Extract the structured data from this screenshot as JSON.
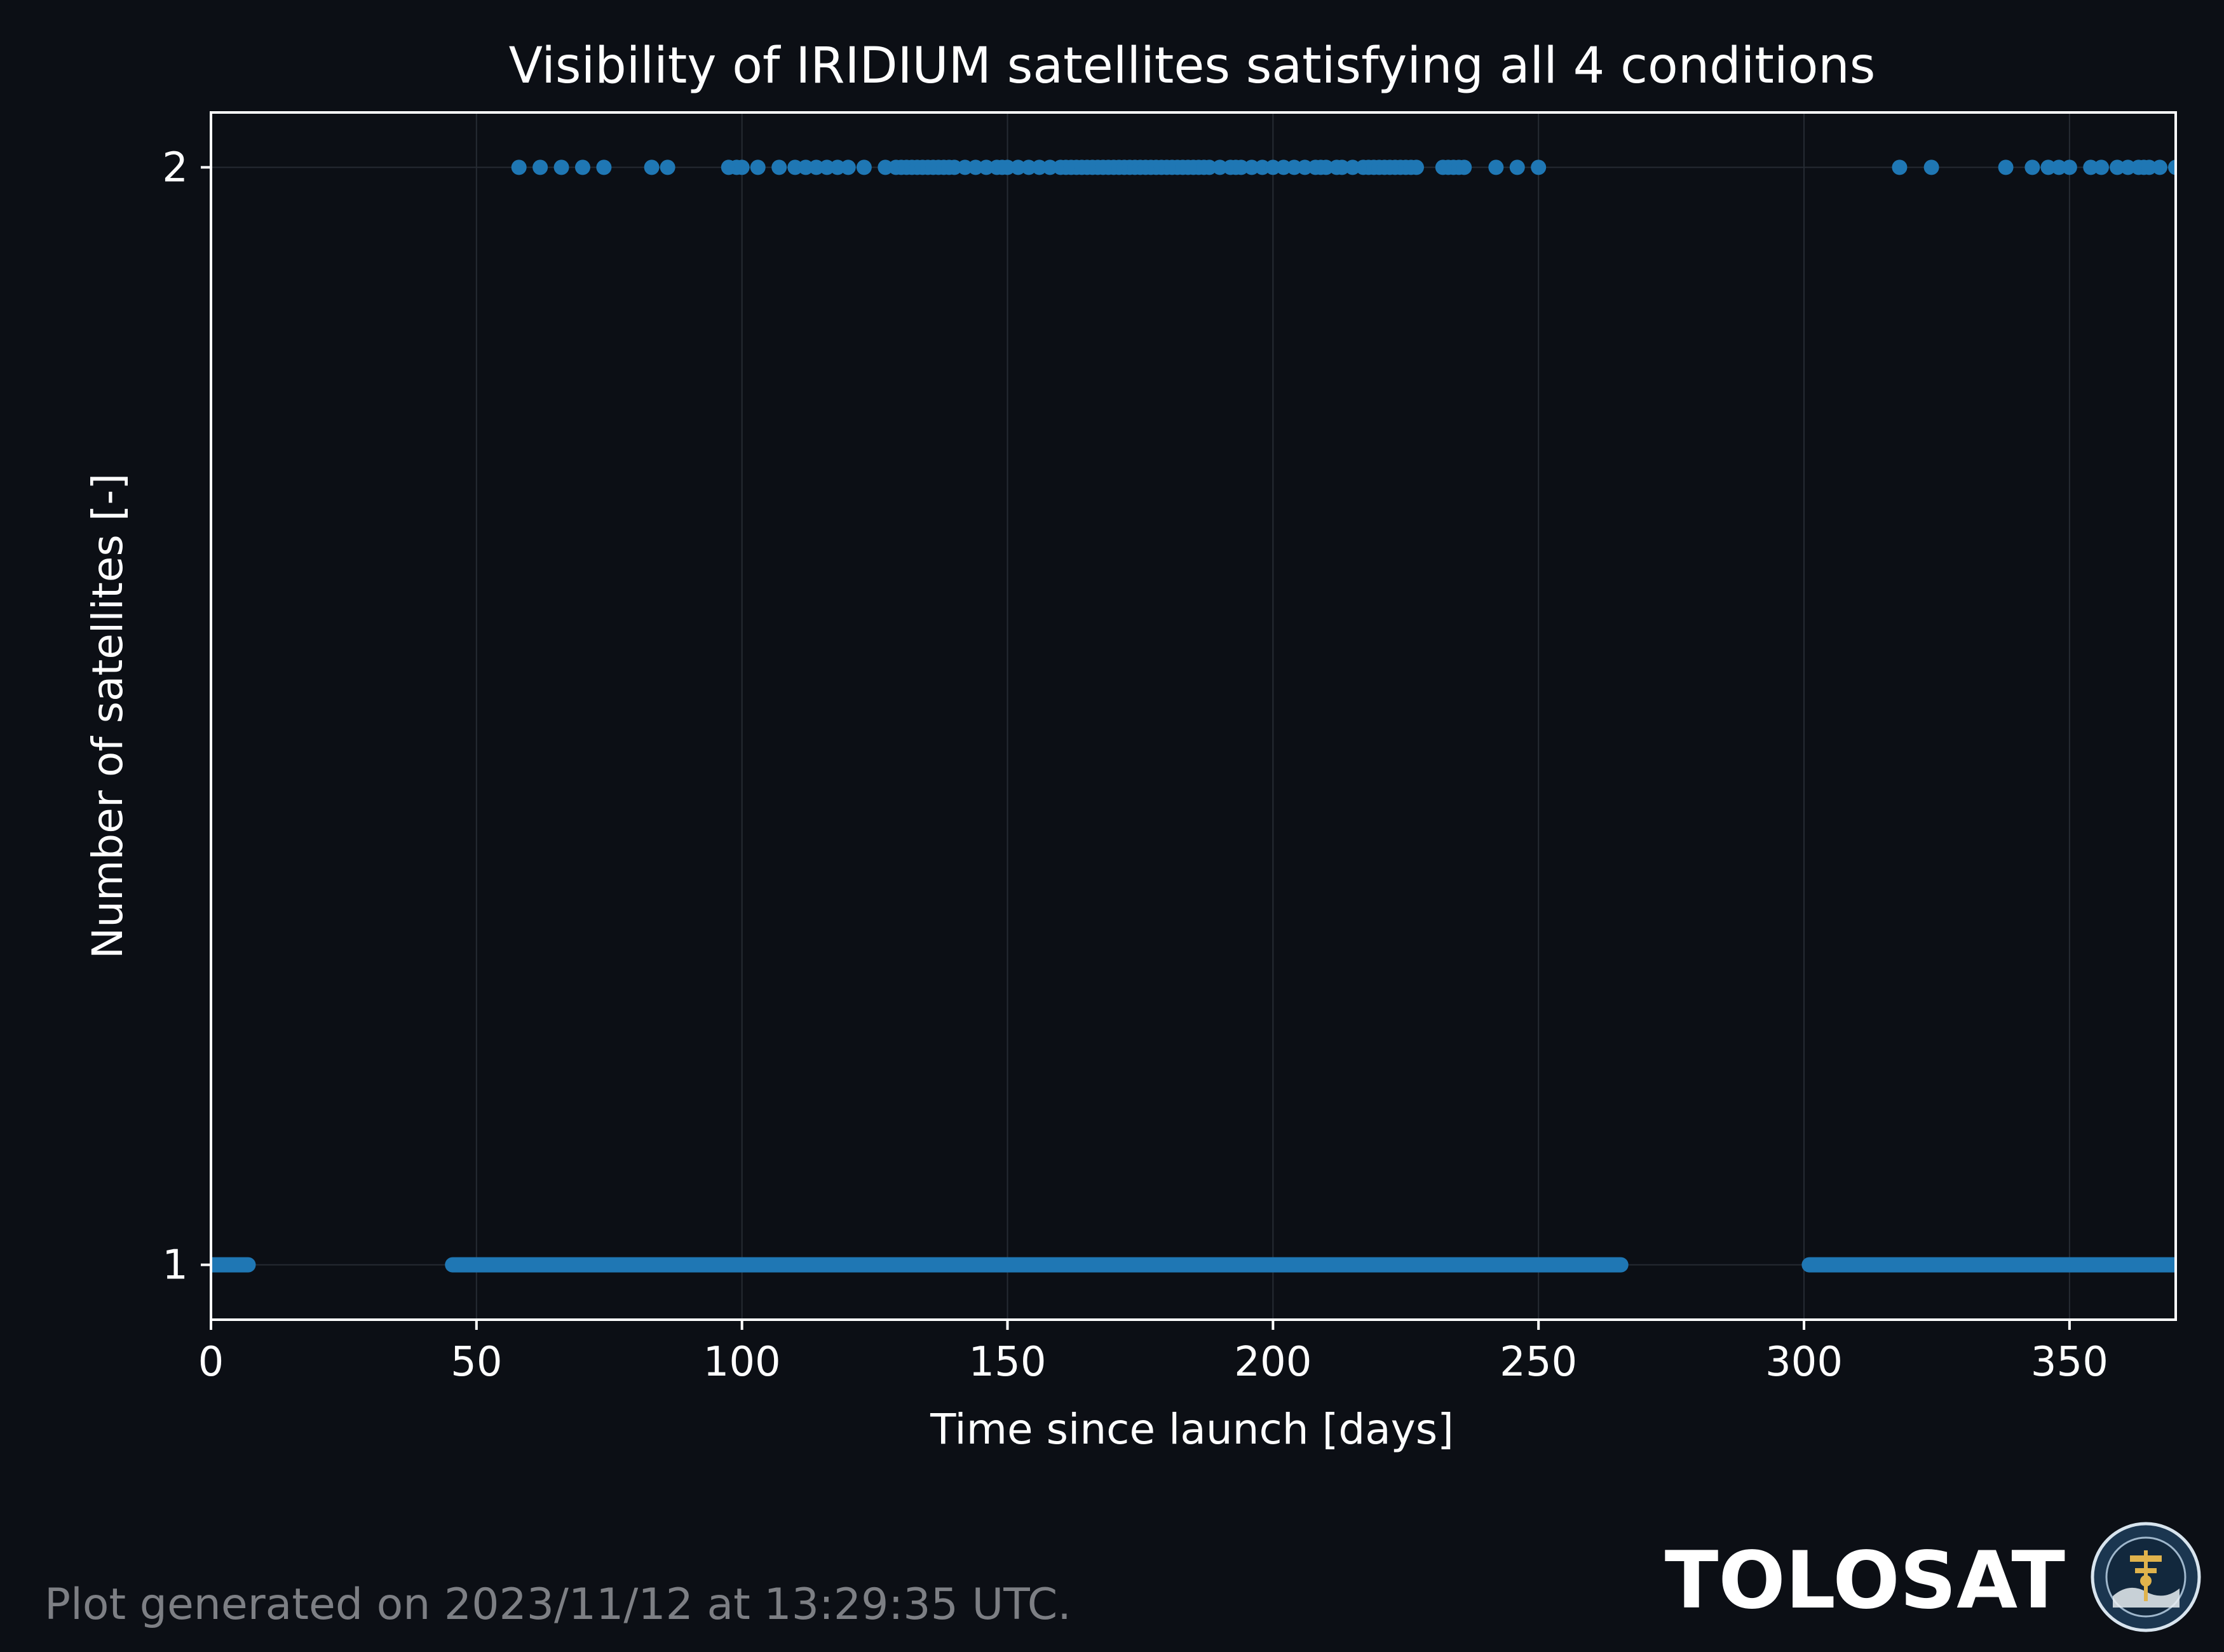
{
  "chart_data": {
    "type": "scatter",
    "title": "Visibility of IRIDIUM satellites satisfying all 4 conditions",
    "xlabel": "Time since launch [days]",
    "ylabel": "Number of satellites [-]",
    "xlim": [
      0,
      370
    ],
    "ylim": [
      0.95,
      2.05
    ],
    "x_ticks": [
      0,
      50,
      100,
      150,
      200,
      250,
      300,
      350
    ],
    "y_ticks": [
      1,
      2
    ],
    "grid": true,
    "legend": "none",
    "marker_color": "#1f77b4",
    "series": [
      {
        "y": 1,
        "segments": [
          [
            0,
            7
          ],
          [
            45.5,
            265.5
          ],
          [
            301,
            370
          ]
        ]
      },
      {
        "y": 2,
        "x": [
          58,
          62,
          66,
          70,
          74,
          83,
          86,
          97.5,
          99,
          100,
          103,
          107,
          110,
          112,
          114,
          116,
          118,
          120,
          123,
          127,
          129,
          130,
          131,
          132,
          133,
          134,
          135,
          136,
          137,
          138,
          139,
          140,
          142,
          144,
          146,
          148,
          149,
          150,
          152,
          154,
          156,
          158,
          160,
          161,
          162,
          163,
          164,
          165,
          166,
          167,
          168,
          169,
          170,
          171,
          172,
          173,
          174,
          175,
          176,
          177,
          178,
          179,
          180,
          181,
          182,
          183,
          184,
          185,
          186,
          187,
          188,
          190,
          192,
          193,
          194,
          196,
          198,
          200,
          202,
          204,
          206,
          208,
          209,
          210,
          212,
          213,
          215,
          217,
          218,
          219,
          220,
          221,
          222,
          223,
          224,
          225,
          226,
          227,
          232,
          233,
          234,
          235,
          236,
          242,
          246,
          250,
          318,
          324,
          338,
          343,
          346,
          348,
          350,
          354,
          356,
          359,
          361,
          363,
          364,
          365,
          367,
          370
        ]
      }
    ]
  },
  "footer": {
    "generated_text": "Plot generated on 2023/11/12 at 13:29:35 UTC."
  },
  "brand": {
    "name": "TOLOSAT",
    "logo_ring_text": "ASTRE·CC SUPAERO TOLOSAT"
  }
}
